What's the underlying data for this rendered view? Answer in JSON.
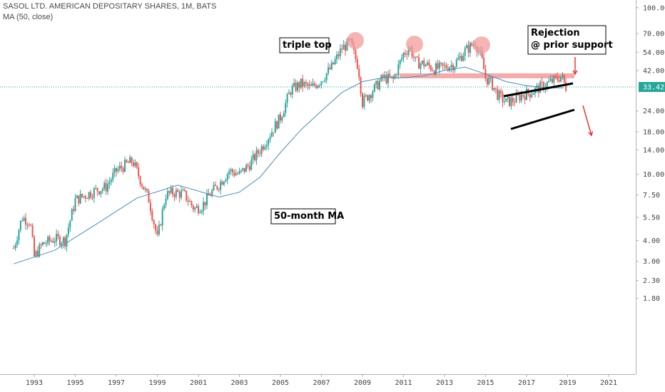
{
  "header": {
    "title": "SASOL LTD. AMERICAN DEPOSITARY SHARES, 1M, BATS",
    "indicator": "MA (50, close)"
  },
  "colors": {
    "up": "#26a69a",
    "down": "#ef5350",
    "ma": "#4a8db7",
    "annotation_red": "#e53935",
    "zone": "#f19c9c",
    "price_line": "#26a69a"
  },
  "annotations": {
    "triple_top": "triple top",
    "rejection_line1": "Rejection",
    "rejection_line2": "@ prior support",
    "ma_label": "50-month MA"
  },
  "current_price": "33.42",
  "chart_data": {
    "type": "candlestick",
    "title": "SASOL LTD. AMERICAN DEPOSITARY SHARES, 1M, BATS",
    "scale": "log",
    "ylim": [
      1.5,
      100
    ],
    "y_ticks": [
      "100.00",
      "70.00",
      "54.00",
      "42.00",
      "33.42",
      "24.00",
      "18.00",
      "14.00",
      "10.00",
      "7.50",
      "5.50",
      "4.00",
      "3.00",
      "2.30",
      "1.80"
    ],
    "x_ticks": [
      "1993",
      "1995",
      "1997",
      "1999",
      "2001",
      "2003",
      "2005",
      "2007",
      "2009",
      "2011",
      "2013",
      "2015",
      "2017",
      "2019",
      "2021"
    ],
    "grid": false,
    "series": [
      {
        "name": "MA (50, close)",
        "type": "line",
        "x": [
          1992.0,
          1994.0,
          1996.0,
          1998.0,
          2000.0,
          2002.0,
          2003.0,
          2004.0,
          2005.0,
          2006.0,
          2007.0,
          2008.0,
          2009.0,
          2010.0,
          2011.0,
          2012.0,
          2013.0,
          2014.0,
          2015.0,
          2016.0,
          2017.0,
          2018.0,
          2018.8
        ],
        "y": [
          2.9,
          3.5,
          5.0,
          7.2,
          8.6,
          7.3,
          7.8,
          9.6,
          13.5,
          18.5,
          24,
          31,
          36,
          38,
          38,
          39,
          42,
          44,
          40,
          36,
          34,
          33,
          33
        ]
      },
      {
        "name": "price",
        "type": "candlestick",
        "interval": "1M",
        "anchors_x": [
          1992.0,
          1992.4,
          1992.8,
          1993.0,
          1993.4,
          1994.0,
          1994.5,
          1995.0,
          1995.5,
          1996.0,
          1996.5,
          1997.0,
          1997.5,
          1997.8,
          1998.3,
          1998.6,
          1999.0,
          1999.4,
          1999.8,
          2000.3,
          2000.8,
          2001.2,
          2001.6,
          2002.0,
          2002.5,
          2003.0,
          2003.5,
          2004.0,
          2004.5,
          2005.0,
          2005.5,
          2006.0,
          2006.5,
          2007.0,
          2007.5,
          2008.0,
          2008.4,
          2008.8,
          2009.0,
          2009.3,
          2009.6,
          2010.0,
          2010.5,
          2011.0,
          2011.3,
          2011.6,
          2012.0,
          2012.5,
          2013.0,
          2013.5,
          2014.0,
          2014.5,
          2014.8,
          2015.0,
          2015.3,
          2015.6,
          2016.0,
          2016.4,
          2016.8,
          2017.2,
          2017.6,
          2018.0,
          2018.4,
          2018.7,
          2018.9
        ],
        "anchors_close": [
          3.6,
          5.5,
          5.2,
          3.2,
          3.8,
          4.1,
          4.0,
          7.0,
          7.5,
          8.0,
          8.4,
          10.5,
          11.5,
          12.0,
          8.5,
          7.0,
          4.1,
          7.5,
          7.8,
          7.6,
          6.2,
          6.5,
          7.7,
          8.7,
          10.5,
          10.0,
          11.5,
          14.0,
          17.5,
          22.0,
          32.0,
          35.0,
          33.0,
          37.0,
          44.0,
          57.0,
          62.0,
          44.0,
          27.0,
          30.0,
          33.0,
          38.0,
          37.0,
          53.0,
          58.0,
          47.0,
          46.0,
          43.0,
          44.0,
          46.0,
          55.0,
          62.0,
          50.0,
          38.0,
          35.0,
          30.0,
          27.0,
          28.0,
          30.0,
          31.0,
          33.0,
          35.0,
          37.0,
          39.0,
          33.4
        ]
      }
    ],
    "annotations_text": [
      "triple top",
      "Rejection @ prior support",
      "50-month MA"
    ]
  }
}
